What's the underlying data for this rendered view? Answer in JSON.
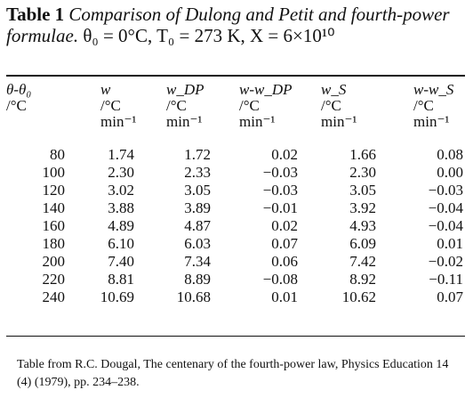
{
  "caption": {
    "lead": "Table 1",
    "text": "Comparison of Dulong and Petit and fourth-power formulae.",
    "conditions": "θ₀ = 0°C, T₀ = 273 K, X = 6×10¹⁰"
  },
  "table": {
    "headers": [
      {
        "symbol": "θ-θ₀",
        "unit": "/°C",
        "unit2": ""
      },
      {
        "symbol": "w",
        "unit": "/°C",
        "unit2": "min⁻¹"
      },
      {
        "symbol": "w_DP",
        "unit": "/°C",
        "unit2": "min⁻¹"
      },
      {
        "symbol": "w-w_DP",
        "unit": "/°C",
        "unit2": "min⁻¹"
      },
      {
        "symbol": "w_S",
        "unit": "/°C",
        "unit2": "min⁻¹"
      },
      {
        "symbol": "w-w_S",
        "unit": "/°C",
        "unit2": "min⁻¹"
      }
    ],
    "rows": [
      [
        "80",
        "1.74",
        "1.72",
        "0.02",
        "1.66",
        "0.08"
      ],
      [
        "100",
        "2.30",
        "2.33",
        "−0.03",
        "2.30",
        "0.00"
      ],
      [
        "120",
        "3.02",
        "3.05",
        "−0.03",
        "3.05",
        "−0.03"
      ],
      [
        "140",
        "3.88",
        "3.89",
        "−0.01",
        "3.92",
        "−0.04"
      ],
      [
        "160",
        "4.89",
        "4.87",
        "0.02",
        "4.93",
        "−0.04"
      ],
      [
        "180",
        "6.10",
        "6.03",
        "0.07",
        "6.09",
        "0.01"
      ],
      [
        "200",
        "7.40",
        "7.34",
        "0.06",
        "7.42",
        "−0.02"
      ],
      [
        "220",
        "8.81",
        "8.89",
        "−0.08",
        "8.92",
        "−0.11"
      ],
      [
        "240",
        "10.69",
        "10.68",
        "0.01",
        "10.62",
        "0.07"
      ]
    ]
  },
  "source": "Table from R.C. Dougal, The centenary of the fourth-power law, Physics Education 14 (4) (1979), pp. 234–238."
}
